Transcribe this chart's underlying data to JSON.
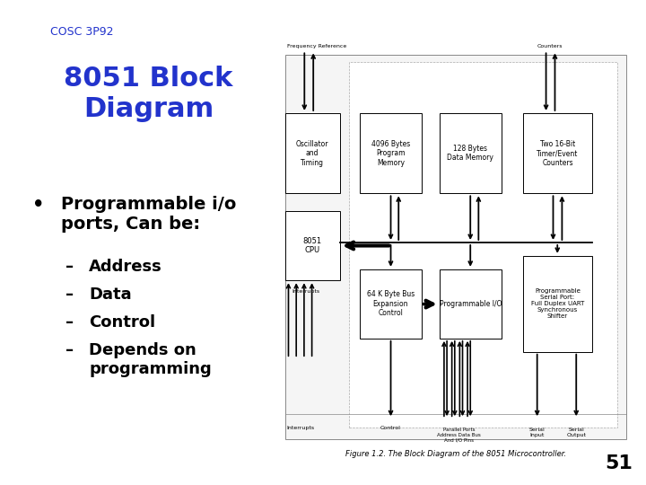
{
  "slide_title": "8051 Block\nDiagram",
  "course_label": "COSC 3P92",
  "title_color": "#2233CC",
  "title_fontsize": 22,
  "course_fontsize": 9,
  "bullet_text": "Programmable i/o\nports, Can be:",
  "bullet_fontsize": 14,
  "sub_items": [
    "Address",
    "Data",
    "Control",
    "Depends on\nprogramming"
  ],
  "sub_fontsize": 13,
  "bg_color": "#FFFFFF",
  "border_color": "#4455EE",
  "page_number": "51",
  "caption": "Figure 1.2. The Block Diagram of the 8051 Microcontroller."
}
